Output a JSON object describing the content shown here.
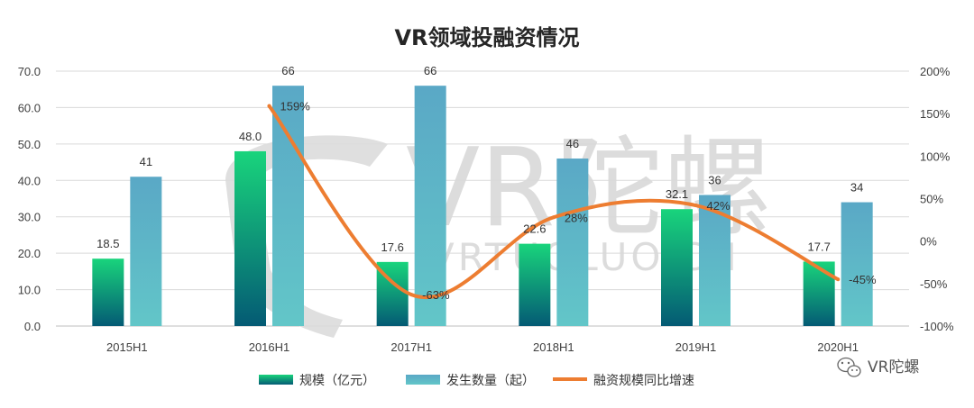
{
  "chart_data": {
    "type": "bar",
    "title": "VR领域投融资情况",
    "categories": [
      "2015H1",
      "2016H1",
      "2017H1",
      "2018H1",
      "2019H1",
      "2020H1"
    ],
    "series": [
      {
        "name": "规模（亿元）",
        "type": "bar",
        "axis": "left",
        "values": [
          18.5,
          48.0,
          17.6,
          22.6,
          32.1,
          17.7
        ],
        "labels": [
          "18.5",
          "48.0",
          "17.6",
          "22.6",
          "32.1",
          "17.7"
        ],
        "color_top": "#19d47c",
        "color_bottom": "#045a74"
      },
      {
        "name": "发生数量（起）",
        "type": "bar",
        "axis": "left",
        "values": [
          41,
          66,
          66,
          46,
          36,
          34
        ],
        "labels": [
          "41",
          "66",
          "66",
          "46",
          "36",
          "34"
        ],
        "color_top": "#5aa8c6",
        "color_bottom": "#62c6c8"
      },
      {
        "name": "融资规模同比增速",
        "type": "line",
        "axis": "right",
        "x": [
          "2016H1",
          "2017H1",
          "2018H1",
          "2019H1",
          "2020H1"
        ],
        "values": [
          159,
          -63,
          28,
          42,
          -45
        ],
        "labels": [
          "159%",
          "-63%",
          "28%",
          "42%",
          "-45%"
        ],
        "color": "#ed7d31"
      }
    ],
    "y_left": {
      "ylim": [
        0,
        70
      ],
      "ticks": [
        "0.0",
        "10.0",
        "20.0",
        "30.0",
        "40.0",
        "50.0",
        "60.0",
        "70.0"
      ]
    },
    "y_right": {
      "ylim": [
        -100,
        200
      ],
      "ticks": [
        "-100%",
        "-50%",
        "0%",
        "50%",
        "100%",
        "150%",
        "200%"
      ]
    },
    "grid": true,
    "legend": "bottom"
  },
  "watermark": {
    "main": "VR陀螺",
    "url": "VRTUOLUO.CN"
  },
  "source_badge": {
    "text": "VR陀螺",
    "icon": "wechat-icon"
  }
}
